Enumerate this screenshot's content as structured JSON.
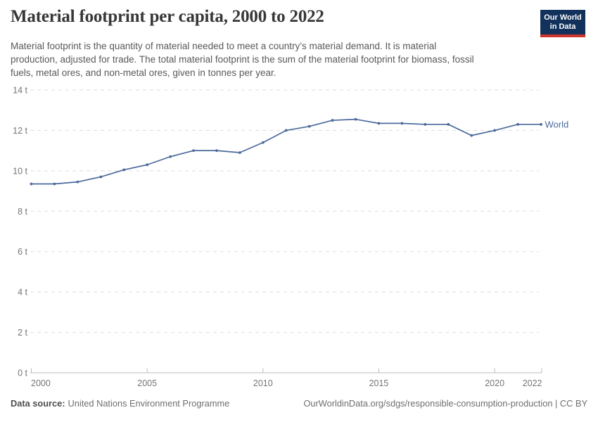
{
  "header": {
    "title": "Material footprint per capita, 2000 to 2022",
    "logo": {
      "line1": "Our World",
      "line2": "in Data"
    }
  },
  "subtitle_lines": [
    "Material footprint is the quantity of material needed to meet a country’s material demand. It is material",
    "production, adjusted for trade. The total material footprint is the sum of the material footprint for biomass, fossil",
    "fuels, metal ores, and non-metal ores, given in tonnes per year."
  ],
  "footer": {
    "source_label": "Data source:",
    "source_value": "United Nations Environment Programme",
    "citation": "OurWorldinData.org/sdgs/responsible-consumption-production | CC BY"
  },
  "colors": {
    "series_blue": "#4c6a9c",
    "logo_navy": "#12325c",
    "logo_red": "#cf352c",
    "gridline": "#dedede",
    "axis_line": "#bbbbbb",
    "tick_text": "#757575",
    "title_text": "#373737",
    "subtitle_text": "#595959",
    "footer_text": "#6e6e6e"
  },
  "chart_data": {
    "type": "line",
    "title": "Material footprint per capita, 2000 to 2022",
    "xlabel": "",
    "ylabel": "",
    "y_unit": "t",
    "ylim": [
      0,
      14
    ],
    "grid": "horizontal-dashed",
    "legend_position": "end-of-line",
    "end_label": "World",
    "x": [
      2000,
      2001,
      2002,
      2003,
      2004,
      2005,
      2006,
      2007,
      2008,
      2009,
      2010,
      2011,
      2012,
      2013,
      2014,
      2015,
      2016,
      2017,
      2018,
      2019,
      2020,
      2021,
      2022
    ],
    "series": [
      {
        "name": "World",
        "color": "#4c6a9c",
        "values": [
          9.35,
          9.35,
          9.45,
          9.7,
          10.05,
          10.3,
          10.7,
          11.0,
          11.0,
          10.9,
          11.4,
          12.0,
          12.2,
          12.5,
          12.55,
          12.35,
          12.35,
          12.3,
          12.3,
          11.75,
          12.0,
          12.3,
          12.3
        ]
      }
    ],
    "y_ticks": [
      0,
      2,
      4,
      6,
      8,
      10,
      12,
      14
    ],
    "y_tick_labels": [
      "0 t",
      "2 t",
      "4 t",
      "6 t",
      "8 t",
      "10 t",
      "12 t",
      "14 t"
    ],
    "x_tick_values": [
      2000,
      2005,
      2010,
      2015,
      2020,
      2022
    ],
    "x_tick_labels": [
      "2000",
      "2005",
      "2010",
      "2015",
      "2020",
      "2022"
    ]
  }
}
